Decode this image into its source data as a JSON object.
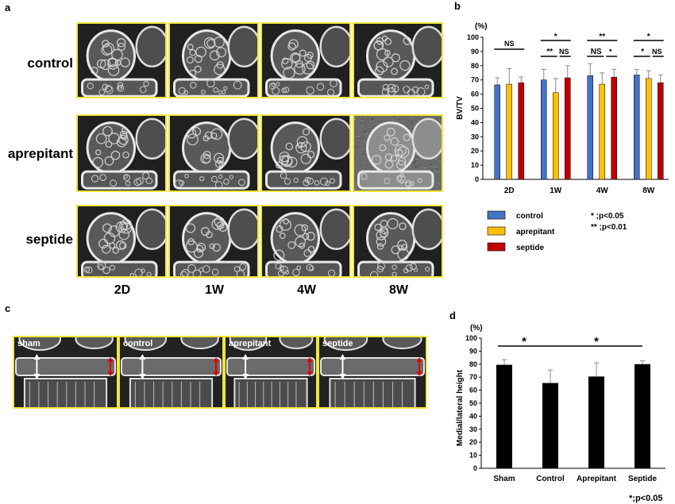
{
  "panels": {
    "a": "a",
    "b": "b",
    "c": "c",
    "d": "d"
  },
  "panel_a": {
    "rows": [
      "control",
      "aprepitant",
      "septide"
    ],
    "cols": [
      "2D",
      "1W",
      "4W",
      "8W"
    ]
  },
  "panel_c": {
    "labels": [
      "sham",
      "control",
      "aprepitant",
      "septide"
    ]
  },
  "colors": {
    "control": "#4472c4",
    "aprepitant": "#ffc000",
    "septide": "#c00000",
    "bar_d": "#000000",
    "frame": "#f2e63a"
  },
  "chart_data": [
    {
      "type": "bar",
      "panel": "b",
      "unit": "(%)",
      "ylabel": "BV/TV",
      "ylim": [
        0,
        100
      ],
      "yticks": [
        0,
        10,
        20,
        30,
        40,
        50,
        60,
        70,
        80,
        90,
        100
      ],
      "categories": [
        "2D",
        "1W",
        "4W",
        "8W"
      ],
      "series": [
        {
          "name": "control",
          "values": [
            66.5,
            70,
            73,
            73.5
          ],
          "errors": [
            5,
            7.5,
            8.5,
            4
          ]
        },
        {
          "name": "aprepitant",
          "values": [
            67,
            61,
            67,
            71
          ],
          "errors": [
            11,
            10,
            8,
            5.5
          ]
        },
        {
          "name": "septide",
          "values": [
            68,
            71.5,
            72,
            68
          ],
          "errors": [
            4,
            8.5,
            5.5,
            5.5
          ]
        }
      ],
      "significance": [
        {
          "category": "2D",
          "label": "NS"
        },
        {
          "category": "1W",
          "labels": [
            "*",
            "**",
            "NS"
          ]
        },
        {
          "category": "4W",
          "labels": [
            "**",
            "NS",
            "*"
          ]
        },
        {
          "category": "8W",
          "labels": [
            "*",
            "*",
            "NS"
          ]
        }
      ],
      "footnote": [
        "* ;p<0.05",
        "** ;p<0.01"
      ]
    },
    {
      "type": "bar",
      "panel": "d",
      "unit": "(%)",
      "ylabel": "Medial/lateral height",
      "ylim": [
        0,
        100
      ],
      "yticks": [
        0,
        10,
        20,
        30,
        40,
        50,
        60,
        70,
        80,
        90,
        100
      ],
      "categories": [
        "Sham",
        "Control",
        "Aprepitant",
        "Septide"
      ],
      "values": [
        79.5,
        65.5,
        70.5,
        80
      ],
      "errors": [
        4,
        10,
        10.5,
        2.5
      ],
      "significance": [
        "*",
        "*"
      ],
      "footnote": "*;p<0.05"
    }
  ]
}
